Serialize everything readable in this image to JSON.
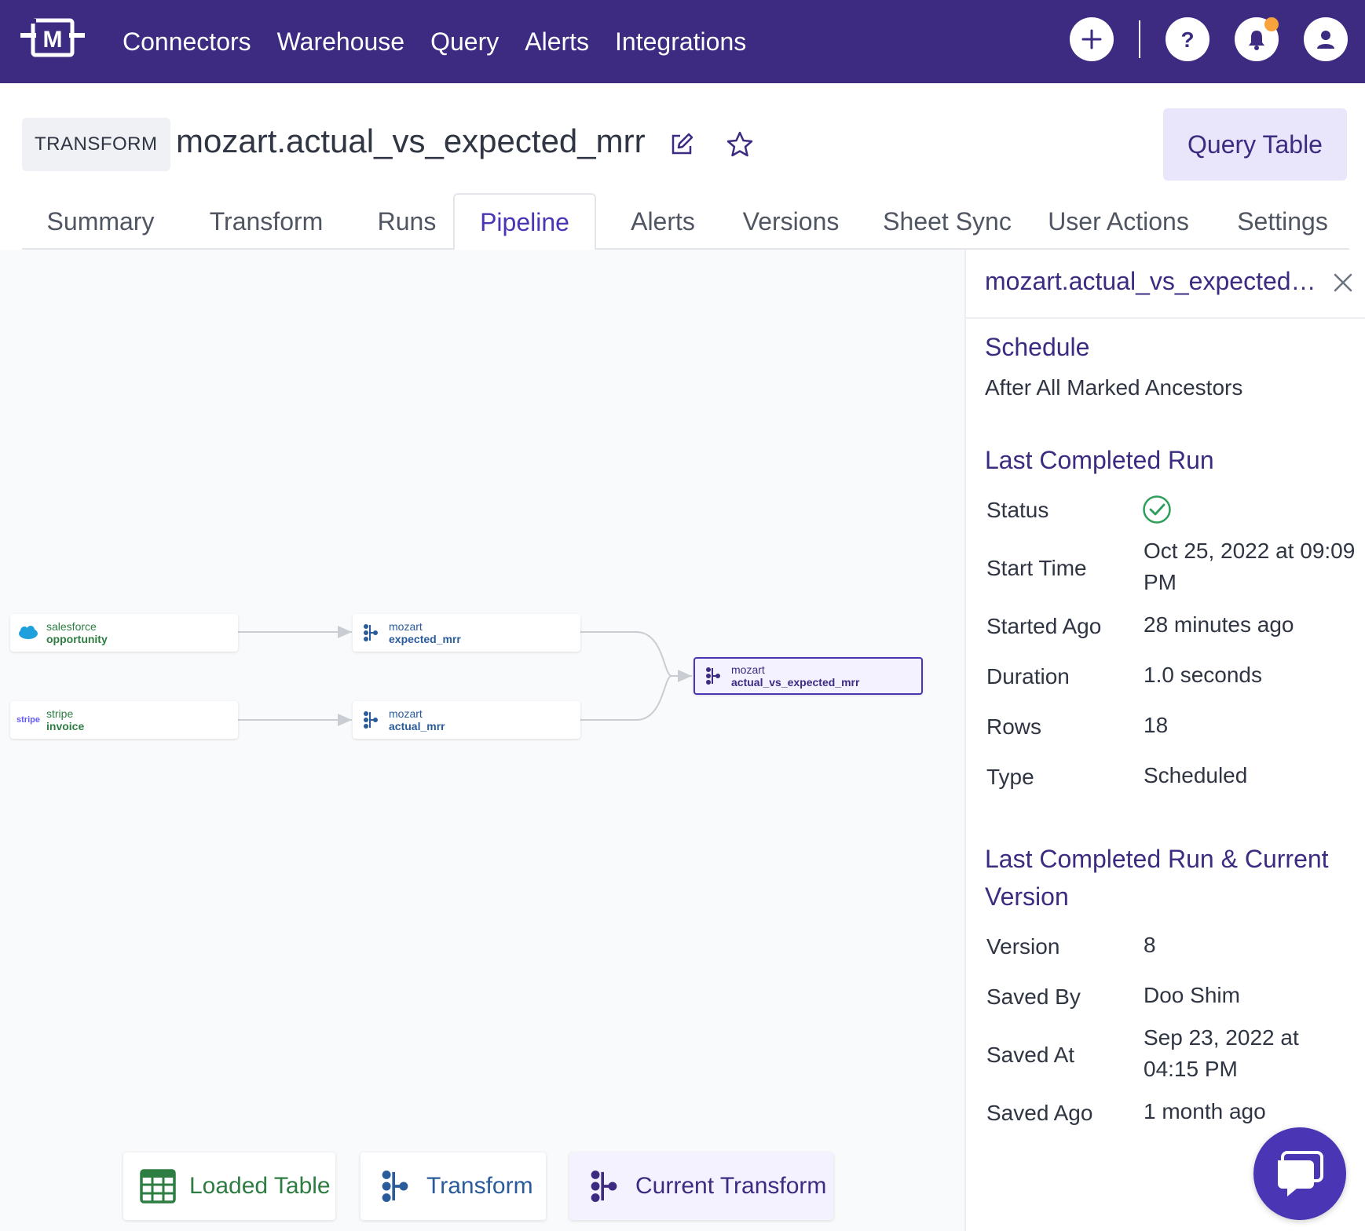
{
  "nav": {
    "items": [
      "Connectors",
      "Warehouse",
      "Query",
      "Alerts",
      "Integrations"
    ]
  },
  "header": {
    "badge": "TRANSFORM",
    "title": "mozart.actual_vs_expected_mrr",
    "query_button": "Query Table"
  },
  "tabs": [
    "Summary",
    "Transform",
    "Runs",
    "Pipeline",
    "Alerts",
    "Versions",
    "Sheet Sync",
    "User Actions",
    "Settings"
  ],
  "active_tab": "Pipeline",
  "pipeline": {
    "nodes": [
      {
        "id": "n1",
        "kind": "loaded",
        "icon": "salesforce-logo-icon",
        "source": "salesforce",
        "name": "opportunity"
      },
      {
        "id": "n2",
        "kind": "loaded",
        "icon": "stripe-logo-icon",
        "source": "stripe",
        "name": "invoice",
        "logo_text": "stripe"
      },
      {
        "id": "n3",
        "kind": "transform",
        "icon": "transform-icon",
        "source": "mozart",
        "name": "expected_mrr"
      },
      {
        "id": "n4",
        "kind": "transform",
        "icon": "transform-icon",
        "source": "mozart",
        "name": "actual_mrr"
      },
      {
        "id": "n5",
        "kind": "current",
        "icon": "transform-icon",
        "source": "mozart",
        "name": "actual_vs_expected_mrr"
      }
    ],
    "edges": [
      [
        "n1",
        "n3"
      ],
      [
        "n2",
        "n4"
      ],
      [
        "n3",
        "n5"
      ],
      [
        "n4",
        "n5"
      ]
    ]
  },
  "legend": {
    "loaded": "Loaded Table",
    "transform": "Transform",
    "current": "Current Transform"
  },
  "panel": {
    "title": "mozart.actual_vs_expected_mrr",
    "schedule": {
      "heading": "Schedule",
      "value": "After All Marked Ancestors"
    },
    "last_run": {
      "heading": "Last Completed Run",
      "rows": [
        {
          "label": "Status",
          "value": "",
          "icon": "success-check-icon"
        },
        {
          "label": "Start Time",
          "value": "Oct 25, 2022 at 09:09 PM"
        },
        {
          "label": "Started Ago",
          "value": "28 minutes ago"
        },
        {
          "label": "Duration",
          "value": "1.0 seconds"
        },
        {
          "label": "Rows",
          "value": "18"
        },
        {
          "label": "Type",
          "value": "Scheduled"
        }
      ]
    },
    "version": {
      "heading": "Last Completed Run & Current Version",
      "rows": [
        {
          "label": "Version",
          "value": "8"
        },
        {
          "label": "Saved By",
          "value": "Doo Shim"
        },
        {
          "label": "Saved At",
          "value": "Sep 23, 2022 at 04:15 PM"
        },
        {
          "label": "Saved Ago",
          "value": "1 month ago"
        }
      ]
    }
  },
  "colors": {
    "brand": "#3d2b82",
    "accent": "#4a35b5",
    "loaded": "#2e7d43",
    "transform": "#2a5b9a",
    "notification_dot": "#f7a23b",
    "success": "#2e9e5b"
  }
}
